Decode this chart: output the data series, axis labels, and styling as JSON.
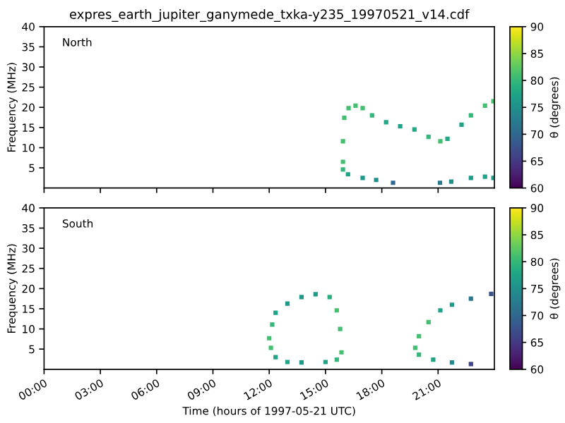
{
  "chart_data": [
    {
      "type": "scatter",
      "title": "expres_earth_jupiter_ganymede_txka-y235_19970521_v14.cdf",
      "ylabel": "Frequency (MHz)",
      "clabel": "θ (degrees)",
      "annotations": [
        "North"
      ],
      "tick_labels": "y",
      "marker": "square",
      "grid": false,
      "xlim": [
        0,
        24
      ],
      "xticks": [
        {
          "value": 0,
          "label": null
        },
        {
          "value": 3,
          "label": null
        },
        {
          "value": 6,
          "label": null
        },
        {
          "value": 9,
          "label": null
        },
        {
          "value": 12,
          "label": null
        },
        {
          "value": 15,
          "label": null
        },
        {
          "value": 18,
          "label": null
        },
        {
          "value": 21,
          "label": null
        }
      ],
      "ylim": [
        0,
        40
      ],
      "yticks": [
        5,
        10,
        15,
        20,
        25,
        30,
        35,
        40
      ],
      "clim": [
        60,
        90
      ],
      "cticks": [
        60,
        65,
        70,
        75,
        80,
        85,
        90
      ],
      "series": [
        {
          "x": [
            15.93,
            15.93,
            16.0,
            16.23,
            16.6,
            16.98,
            17.48,
            18.23,
            18.98,
            19.74,
            20.49,
            21.12,
            21.5,
            22.25,
            22.75,
            23.5,
            23.95
          ],
          "values": [
            6.5,
            11.6,
            17.4,
            19.8,
            20.4,
            19.8,
            18.0,
            16.3,
            15.3,
            14.5,
            12.7,
            11.6,
            12.2,
            15.7,
            18.0,
            20.4,
            21.5
          ],
          "colors": [
            "#44bf70",
            "#44bf70",
            "#44bf70",
            "#44bf70",
            "#44bf70",
            "#44bf70",
            "#35b779",
            "#22a884",
            "#20a386",
            "#22a884",
            "#35b779",
            "#44bf70",
            "#22a884",
            "#20a386",
            "#35b779",
            "#44bf70",
            "#44bf70"
          ]
        },
        {
          "x": [
            15.93,
            16.2,
            16.98,
            17.7,
            18.6,
            21.1,
            21.7,
            22.75,
            23.5,
            23.95
          ],
          "values": [
            4.6,
            3.4,
            2.5,
            2.0,
            1.3,
            1.3,
            1.6,
            2.5,
            2.8,
            2.5
          ],
          "colors": [
            "#35b779",
            "#20a386",
            "#1f998a",
            "#21918c",
            "#31688e",
            "#2a788e",
            "#21918c",
            "#1f998a",
            "#20a386",
            "#1f998a"
          ]
        }
      ]
    },
    {
      "type": "scatter",
      "xlabel": "Time (hours of 1997-05-21 UTC)",
      "ylabel": "Frequency (MHz)",
      "clabel": "θ (degrees)",
      "annotations": [
        "South"
      ],
      "marker": "square",
      "grid": false,
      "xlim": [
        0,
        24
      ],
      "xticks": [
        {
          "value": 0,
          "label": "00:00"
        },
        {
          "value": 3,
          "label": "03:00"
        },
        {
          "value": 6,
          "label": "06:00"
        },
        {
          "value": 9,
          "label": "09:00"
        },
        {
          "value": 12,
          "label": "12:00"
        },
        {
          "value": 15,
          "label": "15:00"
        },
        {
          "value": 18,
          "label": "18:00"
        },
        {
          "value": 21,
          "label": "21:00"
        }
      ],
      "ylim": [
        0,
        40
      ],
      "yticks": [
        5,
        10,
        15,
        20,
        25,
        30,
        35,
        40
      ],
      "clim": [
        60,
        90
      ],
      "cticks": [
        60,
        65,
        70,
        75,
        80,
        85,
        90
      ],
      "series": [
        {
          "x": [
            12.34,
            12.09,
            12.0,
            12.16,
            12.34,
            12.97,
            13.72,
            14.47,
            15.22,
            15.6,
            15.78,
            15.85,
            15.6,
            15.0,
            13.72,
            12.97
          ],
          "values": [
            3.0,
            5.3,
            7.7,
            11.1,
            14.0,
            16.3,
            17.9,
            18.6,
            17.9,
            14.6,
            10.0,
            4.2,
            2.4,
            1.8,
            1.7,
            1.8
          ],
          "colors": [
            "#20a386",
            "#44bf70",
            "#44bf70",
            "#35b779",
            "#20a386",
            "#1f998a",
            "#1f998a",
            "#1f998a",
            "#2ab07f",
            "#44bf70",
            "#44bf70",
            "#44bf70",
            "#35b779",
            "#20a386",
            "#1f998a",
            "#20a386"
          ]
        },
        {
          "x": [
            23.83,
            22.75,
            21.74,
            21.12,
            20.49,
            19.98,
            19.78,
            19.98,
            20.74,
            21.74,
            22.75
          ],
          "values": [
            18.7,
            17.5,
            16.0,
            14.6,
            11.7,
            8.2,
            5.3,
            3.6,
            2.4,
            1.7,
            1.3
          ],
          "colors": [
            "#3b528b",
            "#2a788e",
            "#1f998a",
            "#20a386",
            "#44bf70",
            "#44bf70",
            "#44bf70",
            "#35b779",
            "#20a386",
            "#23898e",
            "#414487"
          ]
        }
      ]
    }
  ]
}
